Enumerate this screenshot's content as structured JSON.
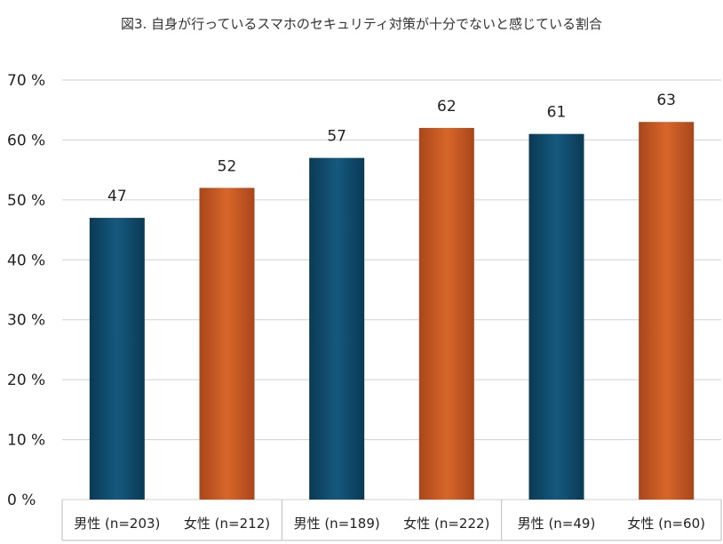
{
  "chart_data": {
    "type": "bar",
    "title": "図3. 自身が行っているスマホのセキュリティ対策が十分でないと感じている割合",
    "xlabel": "",
    "ylabel": "",
    "ylim": [
      0,
      70
    ],
    "yticks": [
      0,
      10,
      20,
      30,
      40,
      50,
      60,
      70
    ],
    "ytick_labels": [
      "0 %",
      "10 %",
      "20 %",
      "30 %",
      "40 %",
      "50 %",
      "60 %",
      "70 %"
    ],
    "grid": true,
    "categories": [
      "男性 (n=203)",
      "女性 (n=212)",
      "男性 (n=189)",
      "女性 (n=222)",
      "男性 (n=49)",
      "女性 (n=60)"
    ],
    "values": [
      47,
      52,
      57,
      62,
      61,
      63
    ],
    "data_labels": [
      "47",
      "52",
      "57",
      "62",
      "61",
      "63"
    ],
    "bar_colors": [
      "#0e4d6e",
      "#c8561e",
      "#0e4d6e",
      "#c8561e",
      "#0e4d6e",
      "#c8561e"
    ],
    "group_count": 3
  }
}
